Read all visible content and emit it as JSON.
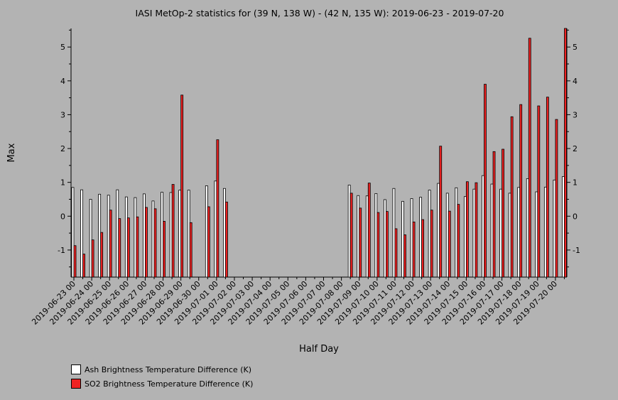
{
  "chart_data": {
    "type": "bar",
    "title": "IASI MetOp-2 statistics for (39 N, 138 W) - (42 N, 135 W): 2019-06-23 - 2019-07-20",
    "xlabel": "Half Day",
    "ylabel": "Max",
    "ylim": [
      -1.8,
      5.55
    ],
    "yticks": [
      -1,
      0,
      1,
      2,
      3,
      4,
      5
    ],
    "grid": false,
    "legend_position": "bottom-left",
    "colors": {
      "background": "#b3b3b3",
      "ash": "#ffffff",
      "so2": "#ee2222",
      "axis": "#000000"
    },
    "categories": [
      "2019-06-23 00",
      "2019-06-23 12",
      "2019-06-24 00",
      "2019-06-24 12",
      "2019-06-25 00",
      "2019-06-25 12",
      "2019-06-26 00",
      "2019-06-26 12",
      "2019-06-27 00",
      "2019-06-27 12",
      "2019-06-28 00",
      "2019-06-28 12",
      "2019-06-29 00",
      "2019-06-29 12",
      "2019-06-30 00",
      "2019-06-30 12",
      "2019-07-01 00",
      "2019-07-01 12",
      "2019-07-02 00",
      "2019-07-02 12",
      "2019-07-03 00",
      "2019-07-03 12",
      "2019-07-04 00",
      "2019-07-04 12",
      "2019-07-05 00",
      "2019-07-05 12",
      "2019-07-06 00",
      "2019-07-06 12",
      "2019-07-07 00",
      "2019-07-07 12",
      "2019-07-08 00",
      "2019-07-08 12",
      "2019-07-09 00",
      "2019-07-09 12",
      "2019-07-10 00",
      "2019-07-10 12",
      "2019-07-11 00",
      "2019-07-11 12",
      "2019-07-12 00",
      "2019-07-12 12",
      "2019-07-13 00",
      "2019-07-13 12",
      "2019-07-14 00",
      "2019-07-14 12",
      "2019-07-15 00",
      "2019-07-15 12",
      "2019-07-16 00",
      "2019-07-16 12",
      "2019-07-17 00",
      "2019-07-17 12",
      "2019-07-18 00",
      "2019-07-18 12",
      "2019-07-19 00",
      "2019-07-19 12",
      "2019-07-20 00",
      "2019-07-20 12"
    ],
    "xtick_labels": [
      "2019-06-23 00",
      "2019-06-24 00",
      "2019-06-25 00",
      "2019-06-26 00",
      "2019-06-27 00",
      "2019-06-28 00",
      "2019-06-29 00",
      "2019-06-30 00",
      "2019-07-01 00",
      "2019-07-02 00",
      "2019-07-03 00",
      "2019-07-04 00",
      "2019-07-05 00",
      "2019-07-06 00",
      "2019-07-07 00",
      "2019-07-08 00",
      "2019-07-09 00",
      "2019-07-10 00",
      "2019-07-11 00",
      "2019-07-12 00",
      "2019-07-13 00",
      "2019-07-14 00",
      "2019-07-15 00",
      "2019-07-16 00",
      "2019-07-17 00",
      "2019-07-18 00",
      "2019-07-19 00",
      "2019-07-20 00"
    ],
    "series": [
      {
        "name": "Ash Brightness Temperature Difference (K)",
        "values": [
          0.85,
          0.78,
          0.5,
          0.65,
          0.62,
          0.78,
          0.57,
          0.55,
          0.66,
          0.45,
          0.71,
          0.7,
          0.77,
          0.77,
          null,
          0.9,
          1.04,
          0.82,
          null,
          null,
          null,
          null,
          null,
          null,
          null,
          null,
          null,
          null,
          null,
          null,
          null,
          0.92,
          0.61,
          0.6,
          0.67,
          0.49,
          0.82,
          0.44,
          0.52,
          0.56,
          0.77,
          0.97,
          0.68,
          0.84,
          0.58,
          0.8,
          1.2,
          0.95,
          0.8,
          0.68,
          0.85,
          1.11,
          0.72,
          0.86,
          1.07,
          1.17
        ]
      },
      {
        "name": "SO2 Brightness Temperature Difference (K)",
        "values": [
          -0.87,
          -1.12,
          -0.7,
          -0.48,
          0.18,
          -0.07,
          -0.05,
          -0.02,
          0.26,
          0.22,
          -0.15,
          0.94,
          3.58,
          -0.19,
          null,
          0.28,
          2.26,
          0.42,
          null,
          null,
          null,
          null,
          null,
          null,
          null,
          null,
          null,
          null,
          null,
          null,
          null,
          0.68,
          0.24,
          0.98,
          0.11,
          0.14,
          -0.37,
          -0.55,
          -0.17,
          -0.1,
          0.18,
          2.07,
          0.15,
          0.35,
          1.02,
          0.99,
          3.9,
          1.91,
          1.98,
          2.94,
          3.3,
          5.26,
          3.26,
          3.52,
          2.86,
          5.55
        ]
      }
    ]
  }
}
